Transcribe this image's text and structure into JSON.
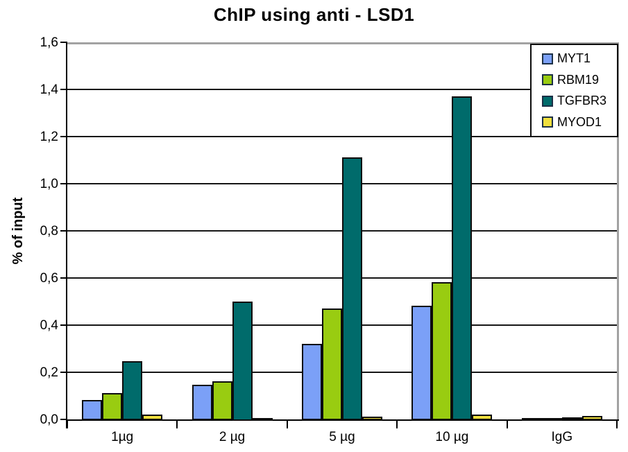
{
  "title": "ChIP using  anti - LSD1",
  "chart_data": {
    "type": "bar",
    "title": "ChIP using  anti - LSD1",
    "xlabel": "",
    "ylabel": "% of input",
    "ylim": [
      0,
      1.6
    ],
    "ytick_step": 0.2,
    "ytick_labels": [
      "0,0",
      "0,2",
      "0,4",
      "0,6",
      "0,8",
      "1,0",
      "1,2",
      "1,4",
      "1,6"
    ],
    "grid": true,
    "legend_position": "top-right",
    "categories": [
      "1µg",
      "2 µg",
      "5 µg",
      "10 µg",
      "IgG"
    ],
    "series": [
      {
        "name": "MYT1",
        "color": "#7BA0F7",
        "values": [
          0.08,
          0.145,
          0.32,
          0.48,
          0.004
        ]
      },
      {
        "name": "RBM19",
        "color": "#99CC11",
        "values": [
          0.11,
          0.16,
          0.47,
          0.58,
          0.004
        ]
      },
      {
        "name": "TGFBR3",
        "color": "#006B6B",
        "values": [
          0.245,
          0.5,
          1.11,
          1.37,
          0.006
        ]
      },
      {
        "name": "MYOD1",
        "color": "#EFDF3D",
        "values": [
          0.02,
          0.005,
          0.01,
          0.02,
          0.012
        ]
      }
    ],
    "colors": {
      "gridline": "#161616",
      "axis": "#000000",
      "plot_border_gray": "#a2a2a2",
      "bar_border": "#0c0c0c",
      "legend_swatch_border": "#1c2f45"
    }
  }
}
